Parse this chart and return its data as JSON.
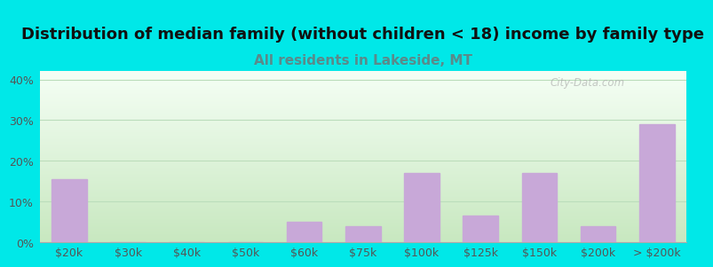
{
  "title": "Distribution of median family (without children < 18) income by family type",
  "subtitle": "All residents in Lakeside, MT",
  "subtitle_color": "#5a8a8a",
  "title_color": "#111111",
  "background_color": "#00e8e8",
  "bar_color": "#c8a8d8",
  "categories": [
    "$20k",
    "$30k",
    "$40k",
    "$50k",
    "$60k",
    "$75k",
    "$100k",
    "$125k",
    "$150k",
    "$200k",
    "> $200k"
  ],
  "values": [
    15.5,
    0,
    0,
    0,
    5.0,
    4.0,
    17.0,
    6.5,
    17.0,
    4.0,
    29.0
  ],
  "ylim": [
    0,
    42
  ],
  "yticks": [
    0,
    10,
    20,
    30,
    40
  ],
  "yticklabels": [
    "0%",
    "10%",
    "20%",
    "30%",
    "40%"
  ],
  "grid_color": "#bbddbb",
  "title_fontsize": 13,
  "subtitle_fontsize": 11,
  "tick_color": "#555555",
  "plot_gradient_top": "#f5fff5",
  "plot_gradient_bottom": "#c8e8c0"
}
